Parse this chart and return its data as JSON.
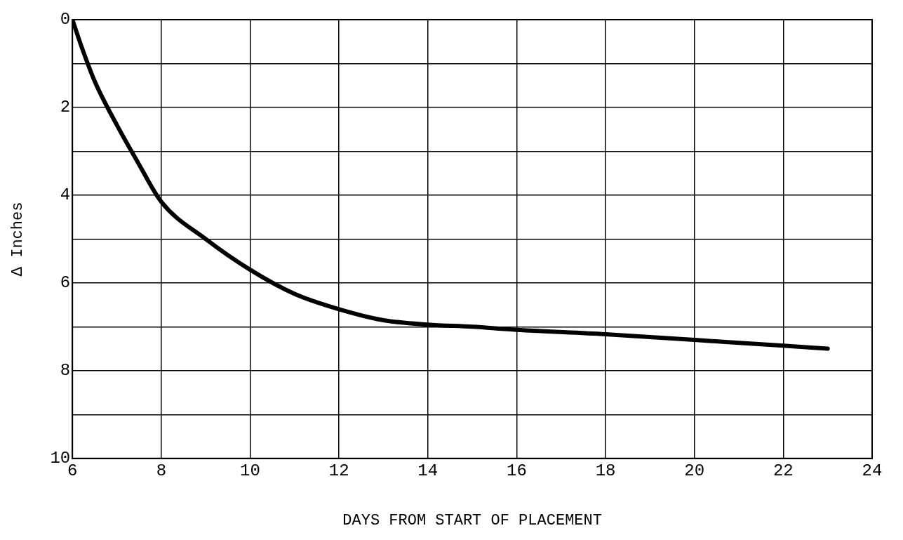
{
  "chart_data": {
    "type": "line",
    "xlabel": "DAYS FROM START OF PLACEMENT",
    "ylabel": "Δ Inches",
    "x": [
      6,
      6.2,
      6.5,
      7,
      7.5,
      8,
      9,
      10,
      11,
      12,
      13,
      14,
      15,
      16,
      18,
      20,
      22,
      23
    ],
    "series": [
      {
        "color": "#000000",
        "values": [
          0,
          0.6,
          1.4,
          2.4,
          3.3,
          4.15,
          5.0,
          5.7,
          6.25,
          6.6,
          6.85,
          6.95,
          7.0,
          7.07,
          7.17,
          7.3,
          7.43,
          7.5
        ]
      }
    ],
    "xlim": [
      6,
      24
    ],
    "xticks": [
      6,
      8,
      10,
      12,
      14,
      16,
      18,
      20,
      22,
      24
    ],
    "ylim": [
      10,
      0
    ],
    "yticks": [
      0,
      {
        "value": 1,
        "label": null
      },
      2,
      {
        "value": 3,
        "label": null
      },
      4,
      {
        "value": 5,
        "label": null
      },
      6,
      {
        "value": 7,
        "label": null
      },
      8,
      {
        "value": 9,
        "label": null
      },
      10
    ],
    "grid": true,
    "legend": false,
    "marker": "none",
    "line_style": "solid"
  }
}
